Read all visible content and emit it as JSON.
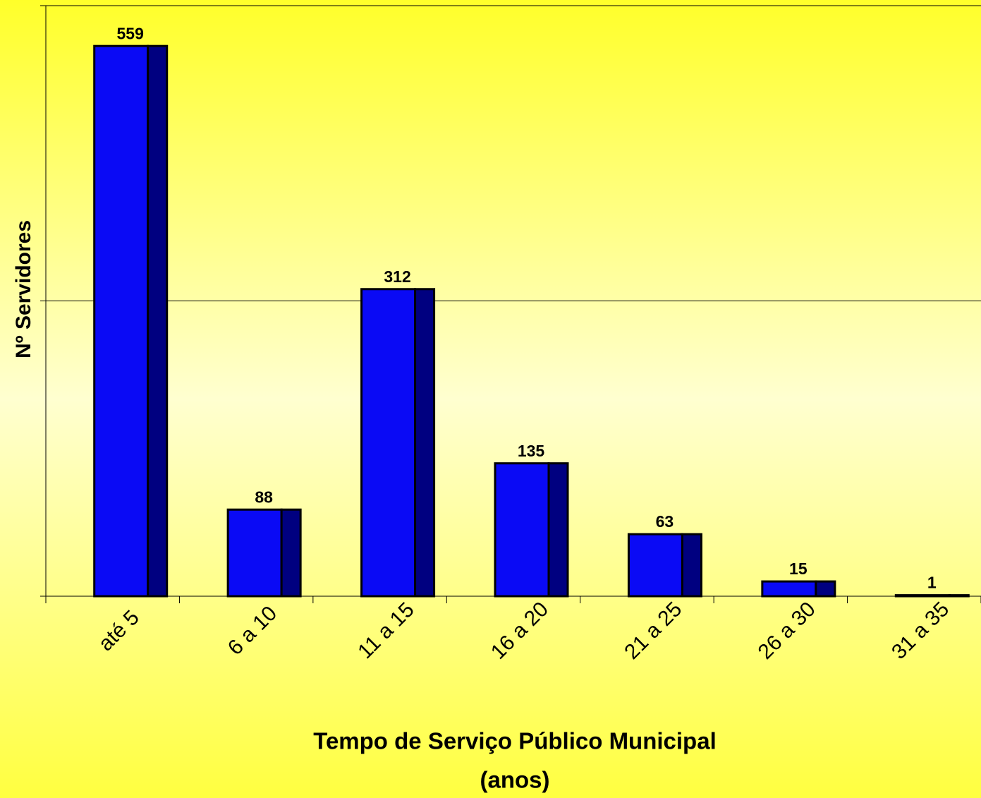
{
  "chart_data": {
    "type": "bar",
    "y_label": "Nº Servidores",
    "x_label": [
      "Tempo de Serviço Público Municipal",
      "(anos)"
    ],
    "categories": [
      "até 5",
      "6 a 10",
      "11 a 15",
      "16 a 20",
      "21 a 25",
      "26 a 30",
      "31 a 35"
    ],
    "values": [
      559,
      88,
      312,
      135,
      63,
      15,
      1
    ],
    "color": "#0a0af5",
    "side_color": "#000080",
    "ylim": [
      0,
      600
    ],
    "yticks": [
      0,
      300,
      600
    ],
    "grid": true
  }
}
